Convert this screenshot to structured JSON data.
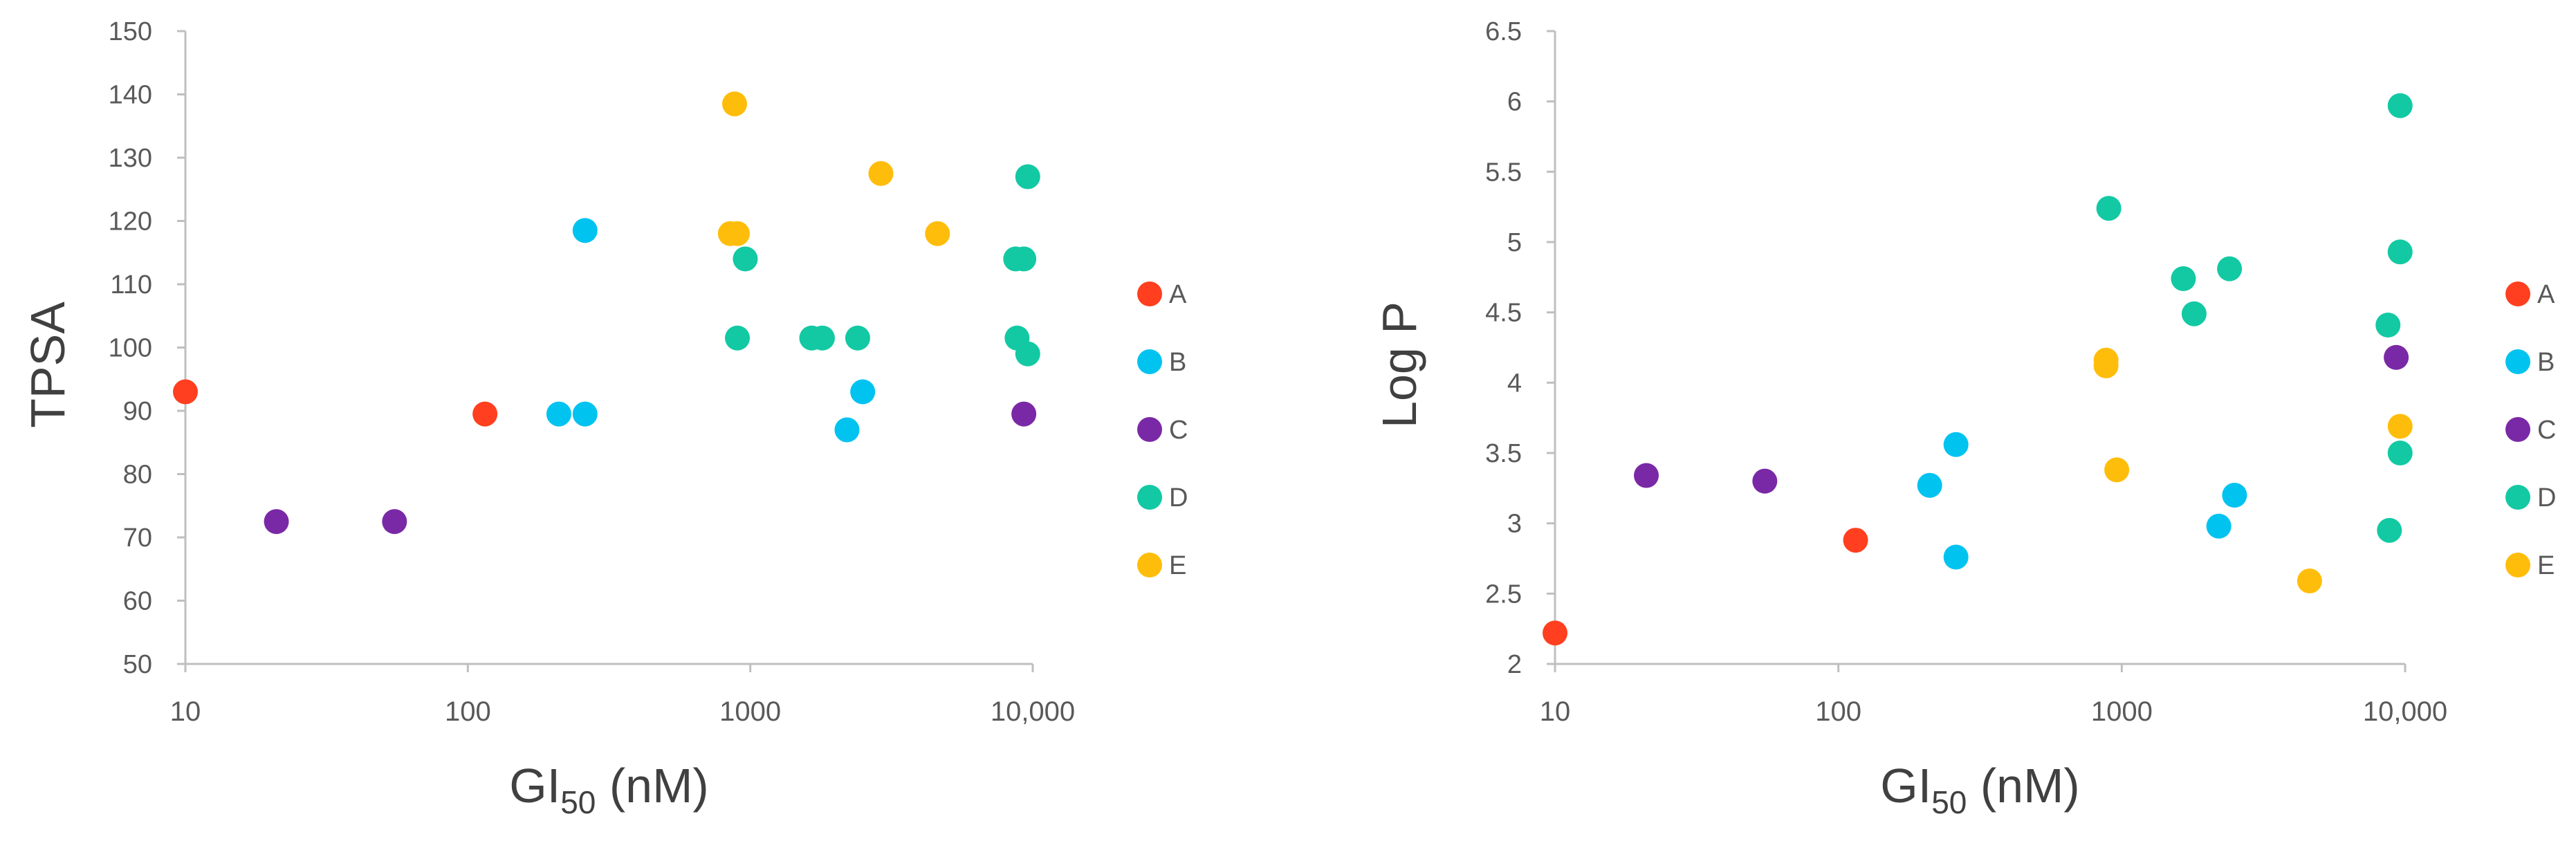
{
  "colors": {
    "A": "#FF3F1F",
    "B": "#00C3F0",
    "C": "#7A29A6",
    "D": "#12C9A3",
    "E": "#FFBD0B",
    "axis": "#BFBFBF",
    "tick_text": "#595959",
    "label_text": "#404040"
  },
  "chart_data": [
    {
      "type": "scatter",
      "title": "",
      "xlabel": "GI",
      "xlabel_sub": "50",
      "xlabel_unit": " (nM)",
      "ylabel": "TPSA",
      "xscale": "log",
      "xlim": [
        10,
        10000
      ],
      "ylim": [
        50,
        150
      ],
      "xticks": [
        10,
        100,
        1000,
        10000
      ],
      "xtick_labels": [
        "10",
        "100",
        "1000",
        "10,000"
      ],
      "yticks": [
        50,
        60,
        70,
        80,
        90,
        100,
        110,
        120,
        130,
        140,
        150
      ],
      "ytick_labels": [
        "50",
        "60",
        "70",
        "80",
        "90",
        "100",
        "110",
        "120",
        "130",
        "140",
        "150"
      ],
      "grid": false,
      "legend_position": "right",
      "series": [
        {
          "name": "A",
          "points": [
            [
              10,
              93
            ],
            [
              115,
              89.5
            ]
          ]
        },
        {
          "name": "B",
          "points": [
            [
              210,
              89.5
            ],
            [
              260,
              89.5
            ],
            [
              260,
              118.5
            ],
            [
              2200,
              87
            ],
            [
              2500,
              93
            ]
          ]
        },
        {
          "name": "C",
          "points": [
            [
              21,
              72.5
            ],
            [
              55,
              72.5
            ],
            [
              9300,
              89.5
            ]
          ]
        },
        {
          "name": "D",
          "points": [
            [
              900,
              101.5
            ],
            [
              960,
              114
            ],
            [
              1650,
              101.5
            ],
            [
              1800,
              101.5
            ],
            [
              2400,
              101.5
            ],
            [
              8700,
              114
            ],
            [
              9300,
              114
            ],
            [
              8800,
              101.5
            ],
            [
              9600,
              99
            ],
            [
              9600,
              127
            ]
          ]
        },
        {
          "name": "E",
          "points": [
            [
              850,
              118
            ],
            [
              900,
              118
            ],
            [
              880,
              138.5
            ],
            [
              2900,
              127.5
            ],
            [
              4600,
              118
            ]
          ]
        }
      ]
    },
    {
      "type": "scatter",
      "title": "",
      "xlabel": "GI",
      "xlabel_sub": "50",
      "xlabel_unit": " (nM)",
      "ylabel": "Log P",
      "xscale": "log",
      "xlim": [
        10,
        10000
      ],
      "ylim": [
        2,
        6.5
      ],
      "xticks": [
        10,
        100,
        1000,
        10000
      ],
      "xtick_labels": [
        "10",
        "100",
        "1000",
        "10,000"
      ],
      "yticks": [
        2,
        2.5,
        3,
        3.5,
        4,
        4.5,
        5,
        5.5,
        6,
        6.5
      ],
      "ytick_labels": [
        "2",
        "2.5",
        "3",
        "3.5",
        "4",
        "4.5",
        "5",
        "5.5",
        "6",
        "6.5"
      ],
      "grid": false,
      "legend_position": "right",
      "series": [
        {
          "name": "A",
          "points": [
            [
              10,
              2.22
            ],
            [
              115,
              2.88
            ]
          ]
        },
        {
          "name": "B",
          "points": [
            [
              210,
              3.27
            ],
            [
              260,
              3.56
            ],
            [
              260,
              2.76
            ],
            [
              2200,
              2.98
            ],
            [
              2500,
              3.2
            ]
          ]
        },
        {
          "name": "C",
          "points": [
            [
              21,
              3.34
            ],
            [
              55,
              3.3
            ],
            [
              9300,
              4.18
            ]
          ]
        },
        {
          "name": "D",
          "points": [
            [
              900,
              5.24
            ],
            [
              1650,
              4.74
            ],
            [
              1800,
              4.49
            ],
            [
              2400,
              4.81
            ],
            [
              8700,
              4.41
            ],
            [
              8800,
              2.95
            ],
            [
              9600,
              5.97
            ],
            [
              9600,
              4.93
            ],
            [
              9600,
              3.5
            ]
          ]
        },
        {
          "name": "E",
          "points": [
            [
              880,
              4.12
            ],
            [
              880,
              4.16
            ],
            [
              960,
              3.38
            ],
            [
              4600,
              2.59
            ],
            [
              9600,
              3.69
            ]
          ]
        }
      ]
    }
  ]
}
